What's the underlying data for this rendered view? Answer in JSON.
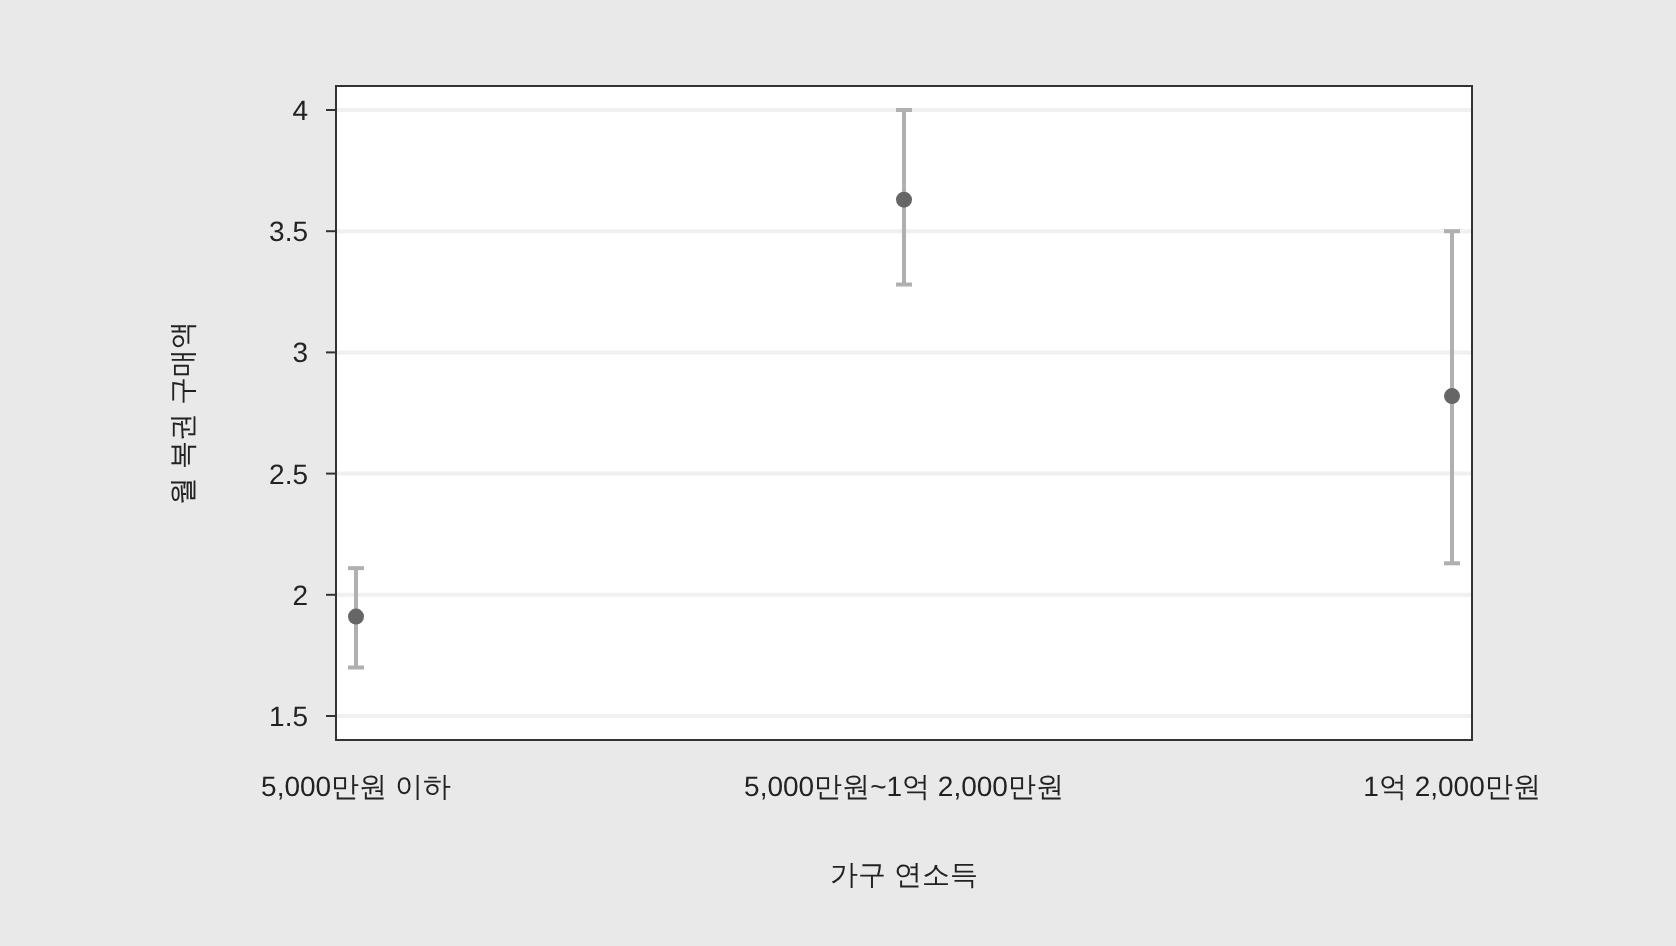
{
  "chart_data": {
    "type": "scatter",
    "xlabel": "가구 연소득",
    "ylabel": "월 복권 구매액",
    "categories": [
      "5,000만원 이하",
      "5,000만원~1억 2,000만원",
      "1억 2,000만원"
    ],
    "series": [
      {
        "color": "#666666",
        "values": [
          1.91,
          3.63,
          2.82
        ],
        "errors": [
          [
            1.7,
            2.11
          ],
          [
            3.28,
            4.0
          ],
          [
            2.13,
            3.5
          ]
        ]
      }
    ],
    "ylim": [
      1.5,
      4.0
    ],
    "yticks": [
      1.5,
      2,
      2.5,
      3,
      3.5,
      4
    ],
    "grid": "y",
    "marker": "circle"
  }
}
